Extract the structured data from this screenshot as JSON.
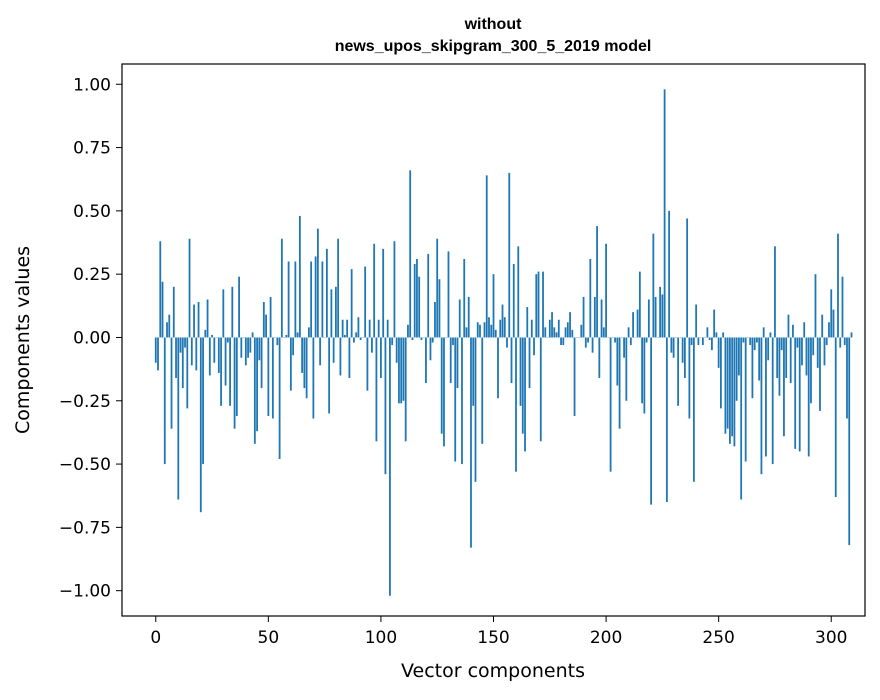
{
  "chart_data": {
    "type": "bar",
    "title_line1": "without",
    "title_line2": "news_upos_skipgram_300_5_2019 model",
    "xlabel": "Vector components",
    "ylabel": "Components values",
    "xlim": [
      -15,
      315
    ],
    "ylim": [
      -1.1,
      1.08
    ],
    "xticks": [
      0,
      50,
      100,
      150,
      200,
      250,
      300
    ],
    "xtick_labels": [
      "0",
      "50",
      "100",
      "150",
      "200",
      "250",
      "300"
    ],
    "yticks": [
      1.0,
      0.75,
      0.5,
      0.25,
      0.0,
      -0.25,
      -0.5,
      -0.75,
      -1.0
    ],
    "ytick_labels": [
      "1.00",
      "0.75",
      "0.50",
      "0.25",
      "0.00",
      "−0.25",
      "−0.50",
      "−0.75",
      "−1.00"
    ],
    "bar_color": "#1f77b4",
    "values": [
      -0.1,
      -0.13,
      0.38,
      0.22,
      -0.5,
      0.06,
      0.09,
      -0.36,
      0.2,
      -0.16,
      -0.64,
      -0.06,
      -0.2,
      -0.04,
      -0.28,
      0.39,
      -0.11,
      0.13,
      -0.13,
      0.14,
      -0.69,
      -0.5,
      0.03,
      0.15,
      -0.15,
      0.01,
      -0.1,
      0.0,
      -0.14,
      -0.27,
      0.19,
      -0.19,
      -0.02,
      -0.27,
      0.2,
      -0.36,
      -0.31,
      0.24,
      -0.08,
      0.0,
      -0.11,
      -0.08,
      -0.06,
      0.02,
      -0.42,
      -0.37,
      -0.09,
      -0.2,
      0.14,
      0.09,
      -0.31,
      0.16,
      -0.32,
      0.0,
      -0.03,
      -0.48,
      0.39,
      0.0,
      0.01,
      0.3,
      -0.21,
      -0.07,
      0.3,
      0.02,
      0.48,
      -0.14,
      -0.2,
      -0.24,
      0.04,
      0.3,
      -0.32,
      0.32,
      0.43,
      -0.11,
      0.3,
      0.0,
      0.35,
      -0.3,
      0.19,
      -0.1,
      0.2,
      0.39,
      -0.15,
      0.07,
      0.01,
      0.07,
      -0.16,
      0.27,
      -0.02,
      0.02,
      0.08,
      -0.01,
      0.0,
      0.28,
      -0.21,
      0.07,
      -0.06,
      0.37,
      -0.41,
      0.07,
      -0.16,
      0.35,
      -0.54,
      0.07,
      -1.02,
      -0.03,
      0.38,
      -0.1,
      -0.26,
      -0.26,
      -0.25,
      -0.41,
      0.05,
      0.66,
      -0.01,
      0.29,
      0.31,
      0.24,
      -0.01,
      0.0,
      -0.18,
      0.33,
      -0.09,
      -0.02,
      0.14,
      0.39,
      0.23,
      -0.38,
      -0.43,
      0.0,
      0.34,
      -0.18,
      -0.03,
      -0.49,
      -0.2,
      0.15,
      -0.5,
      0.31,
      0.04,
      0.16,
      -0.83,
      -0.27,
      -0.57,
      0.06,
      0.05,
      -0.42,
      0.06,
      0.64,
      0.08,
      0.05,
      0.25,
      0.03,
      -0.24,
      0.07,
      0.13,
      0.08,
      -0.04,
      0.65,
      -0.18,
      0.29,
      -0.53,
      0.36,
      -0.27,
      -0.38,
      -0.45,
      0.12,
      -0.2,
      0.07,
      -0.07,
      0.25,
      0.26,
      -0.41,
      0.26,
      0.04,
      0.0,
      0.07,
      0.1,
      0.04,
      0.02,
      0.07,
      -0.03,
      -0.03,
      0.04,
      0.06,
      0.1,
      0.03,
      -0.31,
      0.0,
      0.0,
      0.05,
      0.16,
      -0.04,
      -0.02,
      0.31,
      -0.06,
      0.16,
      0.44,
      -0.16,
      0.15,
      0.04,
      0.37,
      0.0,
      -0.53,
      0.0,
      -0.02,
      -0.19,
      -0.36,
      0.0,
      -0.08,
      -0.25,
      0.04,
      -0.03,
      0.1,
      0.0,
      0.11,
      0.26,
      -0.26,
      -0.3,
      -0.02,
      0.15,
      -0.66,
      0.41,
      0.16,
      0.0,
      0.2,
      0.17,
      0.98,
      -0.65,
      0.5,
      -0.06,
      -0.08,
      0.0,
      -0.27,
      0.0,
      -0.1,
      -0.16,
      0.47,
      -0.32,
      -0.03,
      -0.57,
      0.13,
      -0.03,
      0.0,
      -0.03,
      0.0,
      0.04,
      -0.01,
      -0.05,
      0.11,
      0.02,
      -0.12,
      -0.28,
      0.02,
      -0.38,
      -0.36,
      -0.42,
      -0.39,
      -0.43,
      -0.25,
      -0.15,
      -0.64,
      -0.02,
      -0.49,
      0.0,
      -0.03,
      -0.24,
      -0.05,
      -0.02,
      -0.17,
      -0.54,
      0.04,
      -0.47,
      -0.09,
      0.02,
      -0.5,
      0.36,
      -0.16,
      -0.23,
      -0.05,
      -0.39,
      -0.16,
      0.09,
      -0.18,
      0.05,
      -0.44,
      -0.04,
      -0.45,
      -0.11,
      0.06,
      -0.15,
      -0.47,
      -0.26,
      -0.07,
      0.25,
      -0.12,
      -0.29,
      0.09,
      -0.11,
      -0.03,
      0.06,
      0.19,
      0.11,
      -0.63,
      0.41,
      -0.04,
      0.24,
      -0.03,
      -0.32,
      -0.82,
      0.02
    ]
  }
}
